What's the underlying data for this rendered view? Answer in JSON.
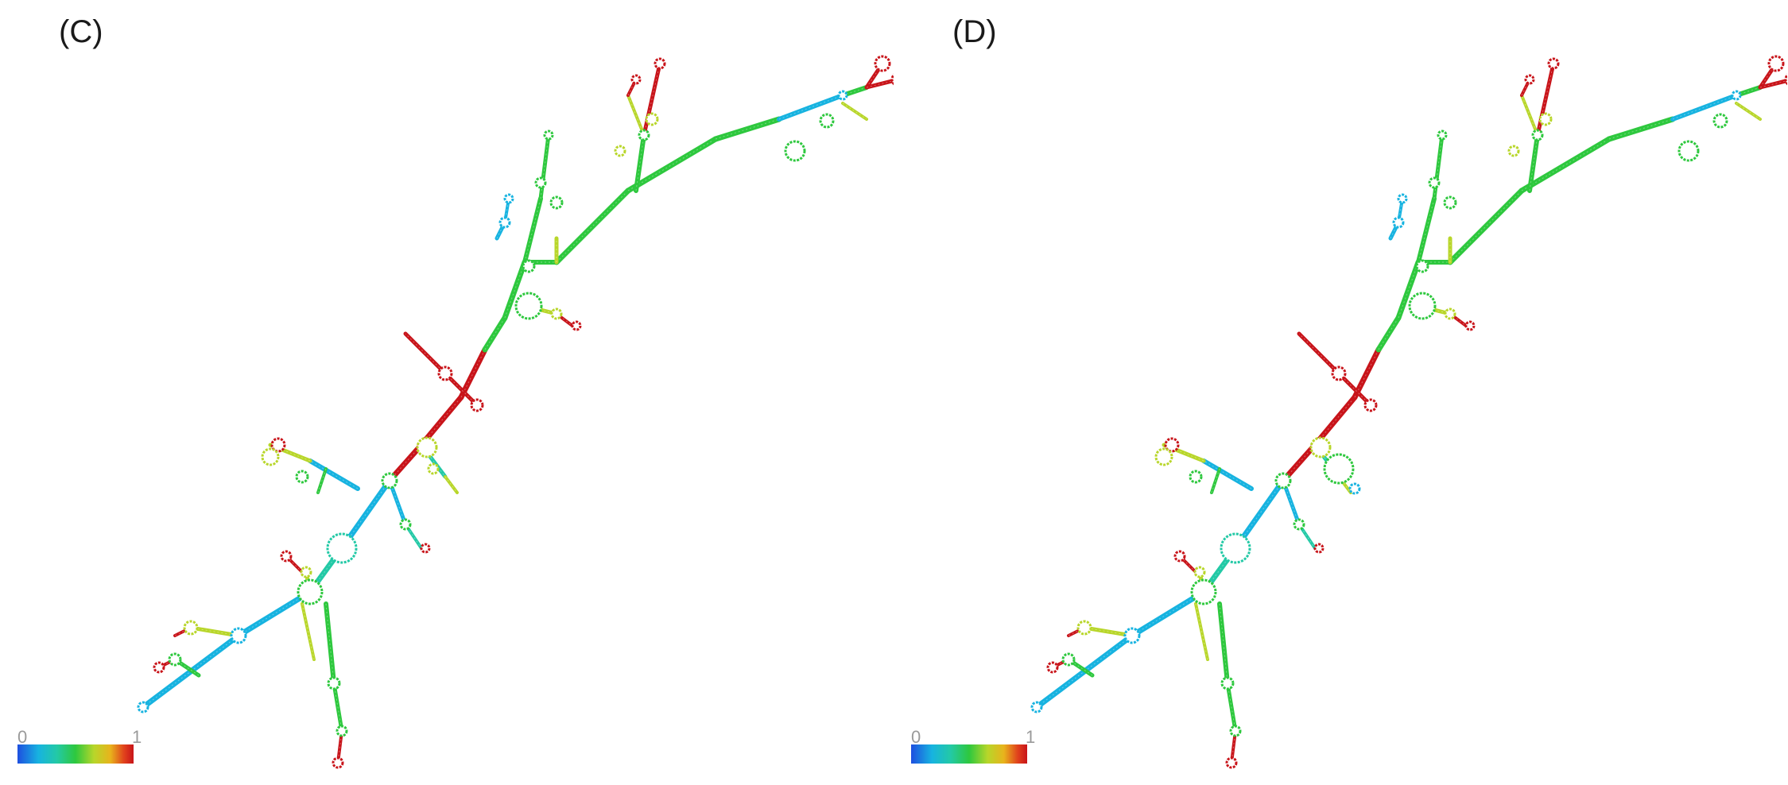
{
  "panels": [
    {
      "label": "(C)",
      "colorbar_min": "0",
      "colorbar_max": "1"
    },
    {
      "label": "(D)",
      "colorbar_min": "0",
      "colorbar_max": "1"
    }
  ],
  "colorbar_colors": [
    "#1e4fe0",
    "#17b3e0",
    "#23c9a6",
    "#2ec83e",
    "#b8d62a",
    "#e8b31c",
    "#e0401c",
    "#c8141a"
  ]
}
